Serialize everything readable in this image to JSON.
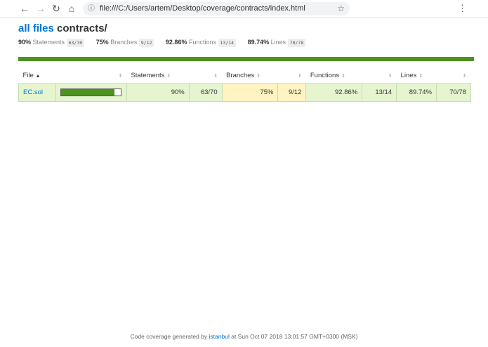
{
  "browser": {
    "url": "file:///C:/Users/artem/Desktop/coverage/contracts/index.html",
    "icons": [
      "back-icon",
      "forward-icon",
      "reload-icon",
      "home-icon",
      "info-icon",
      "star-icon",
      "menu-icon"
    ]
  },
  "header": {
    "root_link": "all files",
    "path": "contracts/"
  },
  "summary": [
    {
      "pct": "90%",
      "label": "Statements",
      "frac": "63/70"
    },
    {
      "pct": "75%",
      "label": "Branches",
      "frac": "9/12"
    },
    {
      "pct": "92.86%",
      "label": "Functions",
      "frac": "13/14"
    },
    {
      "pct": "89.74%",
      "label": "Lines",
      "frac": "70/78"
    }
  ],
  "table": {
    "headers": {
      "file": "File",
      "statements": "Statements",
      "branches": "Branches",
      "functions": "Functions",
      "lines": "Lines"
    },
    "rows": [
      {
        "file": "EC.sol",
        "coverage_pct": 90,
        "statements": "90%",
        "statements_frac": "63/70",
        "branches": "75%",
        "branches_frac": "9/12",
        "functions": "92.86%",
        "functions_frac": "13/14",
        "lines": "89.74%",
        "lines_frac": "70/78"
      }
    ]
  },
  "footer": {
    "prefix": "Code coverage generated by",
    "link": "istanbul",
    "suffix": "at Sun Oct 07 2018 13:01:57 GMT+0300 (MSK)"
  },
  "colors": {
    "high": "#e6f5d0",
    "medium": "#fff4c2",
    "bar": "#4d921f",
    "link": "#0074d9"
  }
}
